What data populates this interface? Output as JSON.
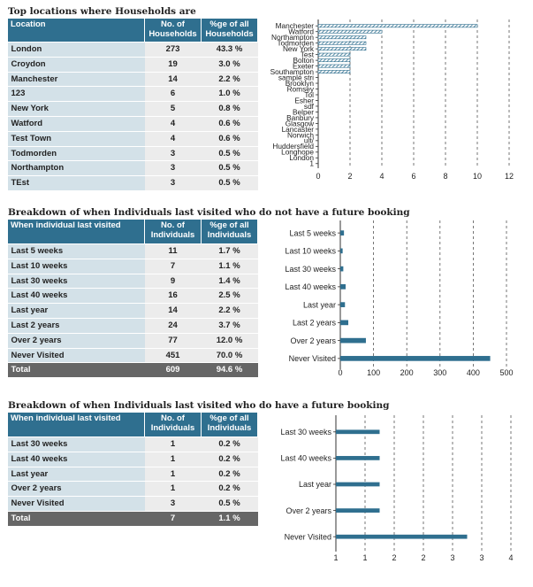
{
  "colors": {
    "header_bg": "#2f6f8f",
    "label_bg": "#d3e1e8",
    "value_bg": "#ececec",
    "total_bg": "#666666",
    "bar": "#2f6f8f"
  },
  "households": {
    "title": "Top locations where Households are",
    "headers": [
      "Location",
      "No. of Households",
      "%ge of all Households"
    ],
    "rows": [
      [
        "London",
        "273",
        "43.3 %"
      ],
      [
        "Croydon",
        "19",
        "3.0 %"
      ],
      [
        "Manchester",
        "14",
        "2.2 %"
      ],
      [
        "123",
        "6",
        "1.0 %"
      ],
      [
        "New York",
        "5",
        "0.8 %"
      ],
      [
        "Watford",
        "4",
        "0.6 %"
      ],
      [
        "Test Town",
        "4",
        "0.6 %"
      ],
      [
        "Todmorden",
        "3",
        "0.5 %"
      ],
      [
        "Northampton",
        "3",
        "0.5 %"
      ],
      [
        "TEst",
        "3",
        "0.5 %"
      ]
    ]
  },
  "no_booking": {
    "title": "Breakdown of when Individuals last visited who do not have a future booking",
    "headers": [
      "When individual last visited",
      "No. of Individuals",
      "%ge of all Individuals"
    ],
    "rows": [
      [
        "Last 5 weeks",
        "11",
        "1.7 %"
      ],
      [
        "Last 10 weeks",
        "7",
        "1.1 %"
      ],
      [
        "Last 30 weeks",
        "9",
        "1.4 %"
      ],
      [
        "Last 40 weeks",
        "16",
        "2.5 %"
      ],
      [
        "Last year",
        "14",
        "2.2 %"
      ],
      [
        "Last 2 years",
        "24",
        "3.7 %"
      ],
      [
        "Over 2 years",
        "77",
        "12.0 %"
      ],
      [
        "Never Visited",
        "451",
        "70.0 %"
      ]
    ],
    "total": [
      "Total",
      "609",
      "94.6 %"
    ]
  },
  "with_booking": {
    "title": "Breakdown of when Individuals last visited who do have a future booking",
    "headers": [
      "When individual last visited",
      "No. of Individuals",
      "%ge of all Individuals"
    ],
    "rows": [
      [
        "Last 30 weeks",
        "1",
        "0.2 %"
      ],
      [
        "Last 40 weeks",
        "1",
        "0.2 %"
      ],
      [
        "Last year",
        "1",
        "0.2 %"
      ],
      [
        "Over 2 years",
        "1",
        "0.2 %"
      ],
      [
        "Never Visited",
        "3",
        "0.5 %"
      ]
    ],
    "total": [
      "Total",
      "7",
      "1.1 %"
    ]
  },
  "chart_data": [
    {
      "type": "bar",
      "orientation": "horizontal",
      "categories": [
        "Manchester",
        "Watford",
        "Northampton",
        "Todmorden",
        "New York",
        "Test",
        "Bolton",
        "Exeter",
        "Southampton",
        "sample stri",
        "Brooklyn",
        "Romsey",
        "Tol",
        "Esher",
        "sdf",
        "Belper",
        "Banbury",
        "Glasgow",
        "Lancaster",
        "Norwich",
        "ult/",
        "Huddersfield",
        "Longhope",
        "London",
        "1"
      ],
      "values": [
        10,
        4,
        3,
        3,
        3,
        2,
        2,
        2,
        2,
        0,
        0,
        0,
        0,
        0,
        0,
        0,
        0,
        0,
        0,
        0,
        0,
        0,
        0,
        0,
        0
      ],
      "x_ticks": [
        "0",
        "2",
        "4",
        "6",
        "8",
        "10",
        "12"
      ],
      "xlim": [
        0,
        12
      ],
      "grid": true
    },
    {
      "type": "bar",
      "orientation": "horizontal",
      "categories": [
        "Last 5 weeks",
        "Last 10 weeks",
        "Last 30 weeks",
        "Last 40 weeks",
        "Last year",
        "Last 2 years",
        "Over 2 years",
        "Never Visited"
      ],
      "values": [
        11,
        7,
        9,
        16,
        14,
        24,
        77,
        451
      ],
      "x_ticks": [
        "0",
        "100",
        "200",
        "300",
        "400",
        "500"
      ],
      "xlim": [
        0,
        500
      ],
      "grid": true
    },
    {
      "type": "bar",
      "orientation": "horizontal",
      "categories": [
        "Last 30 weeks",
        "Last 40 weeks",
        "Last year",
        "Over 2 years",
        "Never Visited"
      ],
      "values": [
        1,
        1,
        1,
        1,
        3
      ],
      "x_ticks": [
        "1",
        "1",
        "2",
        "2",
        "3",
        "3",
        "4"
      ],
      "xlim": [
        0,
        4
      ],
      "grid": true
    }
  ]
}
